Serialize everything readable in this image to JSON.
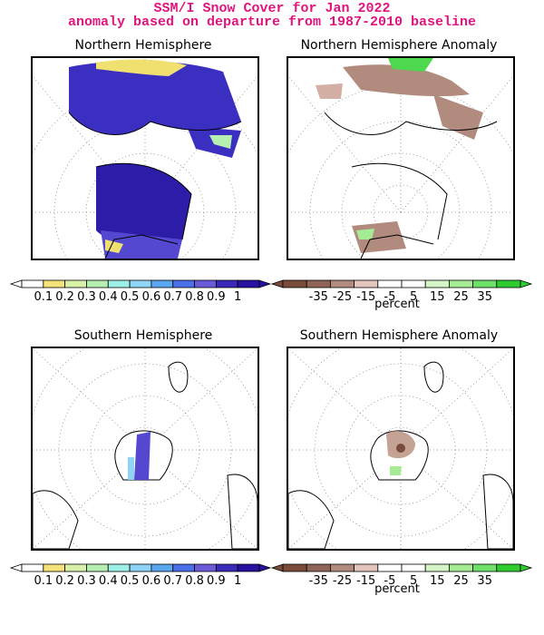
{
  "header": {
    "title": "SSM/I Snow Cover for Jan 2022",
    "subtitle": "anomaly based on departure from 1987-2010 baseline",
    "title_color": "#e0147d"
  },
  "panels": [
    {
      "id": "nh",
      "title": "Northern Hemisphere",
      "type": "snow-cover"
    },
    {
      "id": "nh-anom",
      "title": "Northern Hemisphere Anomaly",
      "type": "anomaly"
    },
    {
      "id": "sh",
      "title": "Southern Hemisphere",
      "type": "snow-cover"
    },
    {
      "id": "sh-anom",
      "title": "Southern Hemisphere Anomaly",
      "type": "anomaly"
    }
  ],
  "cover_scale": {
    "labels": [
      "0.1",
      "0.2",
      "0.3",
      "0.4",
      "0.5",
      "0.6",
      "0.7",
      "0.8",
      "0.9",
      "1"
    ],
    "colors": [
      "#ffffff",
      "#f5e27a",
      "#d9f0a8",
      "#b6f0b0",
      "#9ef0e6",
      "#8fd4f7",
      "#5aa7f0",
      "#4b6fe8",
      "#6a5ad8",
      "#3a28b8",
      "#2810a0"
    ]
  },
  "anomaly_scale": {
    "labels": [
      "-35",
      "-25",
      "-15",
      "-5",
      "5",
      "15",
      "25",
      "35"
    ],
    "colors": [
      "#7a4a3a",
      "#8f6456",
      "#b08b7e",
      "#e2c6bd",
      "#ffffff",
      "#ffffff",
      "#d4f5c8",
      "#a6ec94",
      "#6ee06a",
      "#2ecc2e"
    ],
    "unit_label": "percent"
  }
}
